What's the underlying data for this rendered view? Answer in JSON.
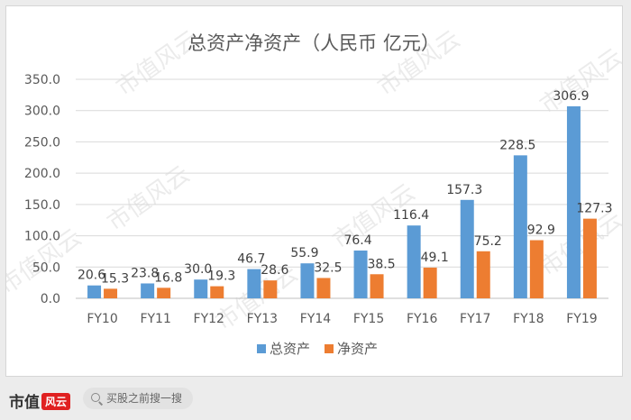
{
  "chart_data": {
    "type": "bar",
    "title": "总资产净资产（人民币 亿元）",
    "categories": [
      "FY10",
      "FY11",
      "FY12",
      "FY13",
      "FY14",
      "FY15",
      "FY16",
      "FY17",
      "FY18",
      "FY19"
    ],
    "series": [
      {
        "name": "总资产",
        "color": "#5b9bd5",
        "values": [
          20.6,
          23.8,
          30.0,
          46.7,
          55.9,
          76.4,
          116.4,
          157.3,
          228.5,
          306.9
        ],
        "labels": [
          "20.6",
          "23.8",
          "30.0",
          "46.7",
          "55.9",
          "76.4",
          "116.4",
          "157.3",
          "228.5",
          "306.9"
        ]
      },
      {
        "name": "净资产",
        "color": "#ed7d31",
        "values": [
          15.3,
          16.8,
          19.3,
          28.6,
          32.5,
          38.5,
          49.1,
          75.2,
          92.9,
          127.3
        ],
        "labels": [
          "15.3",
          "16.8",
          "19.3",
          "28.6",
          "32.5",
          "38.5",
          "49.1",
          "75.2",
          "92.9",
          "127.3"
        ]
      }
    ],
    "ylim": [
      0,
      350
    ],
    "yticks": [
      "0.0",
      "50.0",
      "100.0",
      "150.0",
      "200.0",
      "250.0",
      "300.0",
      "350.0"
    ],
    "grid": true,
    "legend_position": "bottom"
  },
  "watermark": "市值风云",
  "footer": {
    "brand": "市值",
    "brand_mark": "风云",
    "search_placeholder": "买股之前搜一搜"
  }
}
